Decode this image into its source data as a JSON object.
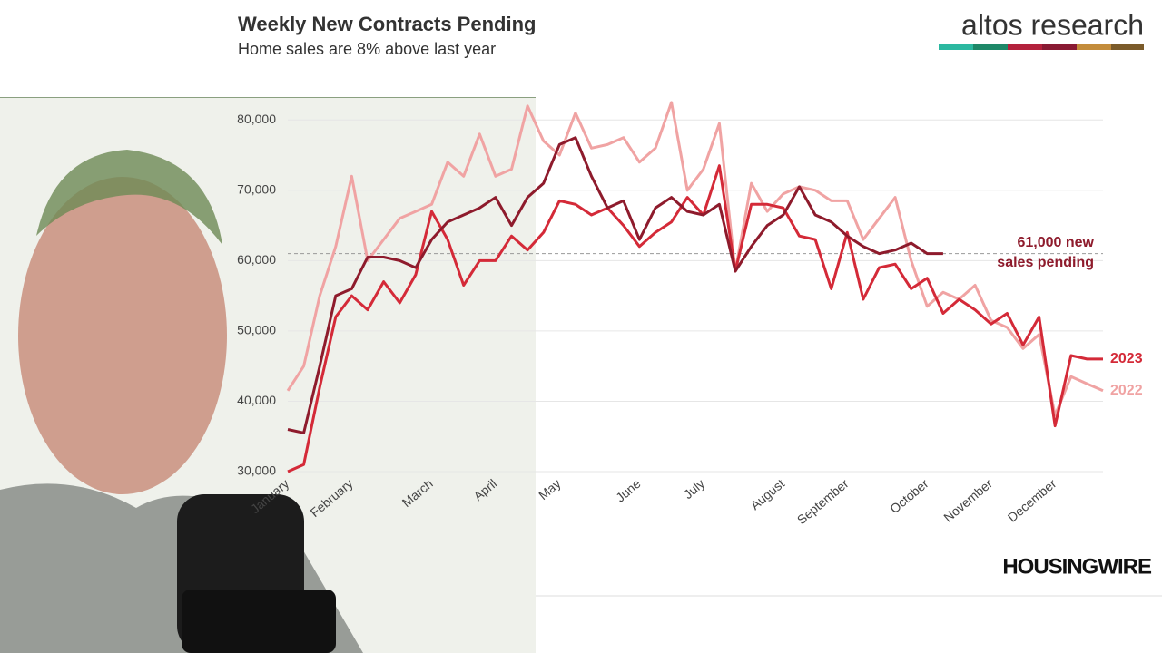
{
  "chart_data": {
    "type": "line",
    "title": "Weekly New Contracts Pending",
    "subtitle": "Home sales are 8% above last year",
    "categories": [
      "January",
      null,
      null,
      null,
      "February",
      null,
      null,
      null,
      null,
      "March",
      null,
      null,
      null,
      "April",
      null,
      null,
      null,
      "May",
      null,
      null,
      null,
      null,
      "June",
      null,
      null,
      null,
      "July",
      null,
      null,
      null,
      null,
      "August",
      null,
      null,
      null,
      "September",
      null,
      null,
      null,
      null,
      "October",
      null,
      null,
      null,
      "November",
      null,
      null,
      null,
      "December",
      null,
      null,
      null
    ],
    "series": [
      {
        "name": "2022",
        "color": "#f0a3a3",
        "values": [
          41500,
          45000,
          55000,
          62000,
          72000,
          60000,
          63000,
          66000,
          67000,
          68000,
          74000,
          72000,
          78000,
          72000,
          73000,
          82000,
          77000,
          75000,
          81000,
          76000,
          76500,
          77500,
          74000,
          76000,
          82500,
          70000,
          73000,
          79500,
          58500,
          71000,
          67000,
          69500,
          70500,
          70000,
          68500,
          68500,
          63000,
          66000,
          69000,
          60000,
          53500,
          55500,
          54500,
          56500,
          51500,
          50500,
          47500,
          49500,
          38000,
          43500,
          42500,
          41500
        ]
      },
      {
        "name": "2023",
        "color": "#d42a38",
        "values": [
          30000,
          31000,
          42000,
          52000,
          55000,
          53000,
          57000,
          54000,
          58000,
          67000,
          63000,
          56500,
          60000,
          60000,
          63500,
          61500,
          64000,
          68500,
          68000,
          66500,
          67500,
          65000,
          62000,
          64000,
          65500,
          69000,
          66500,
          73500,
          58500,
          68000,
          68000,
          67500,
          63500,
          63000,
          56000,
          64000,
          54500,
          59000,
          59500,
          56000,
          57500,
          52500,
          54500,
          53000,
          51000,
          52500,
          48000,
          52000,
          36500,
          46500,
          46000,
          46000
        ]
      },
      {
        "color": "#8e1b2c",
        "values": [
          36000,
          35500,
          45000,
          55000,
          56000,
          60500,
          60500,
          60000,
          59000,
          63000,
          65500,
          66500,
          67500,
          69000,
          65000,
          69000,
          71000,
          76500,
          77500,
          72000,
          67500,
          68500,
          63000,
          67500,
          69000,
          67000,
          66500,
          68000,
          58500,
          62000,
          65000,
          66500,
          70500,
          66500,
          65500,
          63500,
          62000,
          61000,
          61500,
          62500,
          61000,
          61000,
          null,
          null,
          null,
          null,
          null,
          null,
          null,
          null,
          null,
          null
        ]
      }
    ],
    "ylim": [
      30000,
      83000
    ],
    "yticks": [
      {
        "value": 30000,
        "label": "30,000"
      },
      {
        "value": 40000,
        "label": "40,000"
      },
      {
        "value": 50000,
        "label": "50,000"
      },
      {
        "value": 60000,
        "label": "60,000"
      },
      {
        "value": 70000,
        "label": "70,000"
      },
      {
        "value": 80000,
        "label": "80,000"
      }
    ],
    "grid": true,
    "reference_value": 61000,
    "annotation": [
      "61,000 new",
      "sales pending"
    ],
    "annotation_color": "#8e1b2c"
  },
  "header": {
    "logo": "altos research"
  },
  "footer": {
    "brand": "HOUSINGWIRE"
  }
}
